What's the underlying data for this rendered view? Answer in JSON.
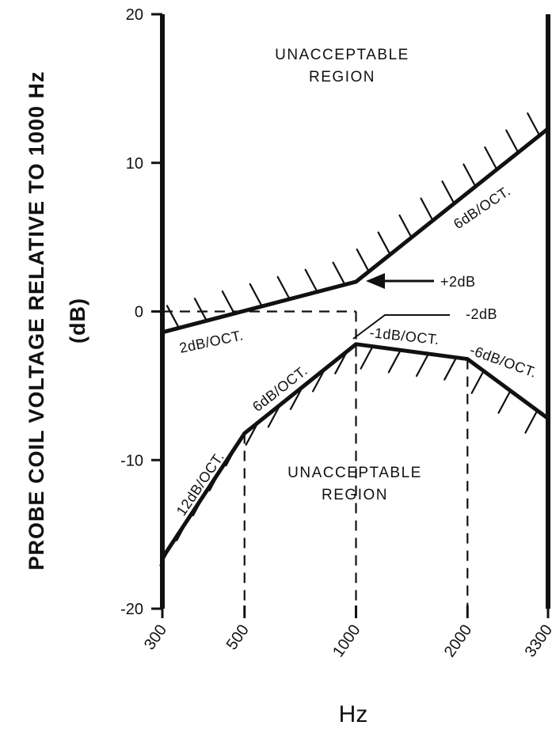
{
  "chart_data": {
    "type": "line",
    "xlabel": "Hz",
    "ylabel": "PROBE COIL VOLTAGE RELATIVE TO 1000 Hz",
    "ylabel_unit": "(dB)",
    "x_scale": "log",
    "xlim": [
      300,
      3300
    ],
    "ylim": [
      -20,
      20
    ],
    "x_ticks": [
      300,
      500,
      1000,
      2000,
      3300
    ],
    "x_tick_labels": [
      "300",
      "500",
      "1000",
      "2000",
      "3300"
    ],
    "y_ticks": [
      -20,
      -10,
      0,
      10,
      20
    ],
    "y_tick_labels": [
      "-20",
      "-10",
      "0",
      "10",
      "20"
    ],
    "grid": false,
    "series": [
      {
        "id": "upper",
        "x": [
          300,
          1000,
          3300
        ],
        "y": [
          -1.4,
          2,
          12.3
        ]
      },
      {
        "id": "lower",
        "x": [
          300,
          500,
          1000,
          2000,
          3300
        ],
        "y": [
          -16.6,
          -8.2,
          -2.2,
          -3.2,
          -7.2
        ]
      }
    ],
    "reference_lines": [
      {
        "points": [
          [
            300,
            0
          ],
          [
            1000,
            0
          ]
        ]
      },
      {
        "points": [
          [
            1000,
            0
          ],
          [
            1000,
            -20
          ]
        ]
      },
      {
        "points": [
          [
            500,
            -8.2
          ],
          [
            500,
            -20
          ]
        ]
      },
      {
        "points": [
          [
            2000,
            -3.2
          ],
          [
            2000,
            -20
          ]
        ]
      }
    ],
    "annotations": {
      "upper_region": [
        "UNACCEPTABLE",
        "REGION"
      ],
      "lower_region": [
        "UNACCEPTABLE",
        "REGION"
      ],
      "upper_seg1_slope": "2dB/OCT.",
      "upper_seg2_slope": "6dB/OCT.",
      "plus2": "+2dB",
      "minus2": "-2dB",
      "lower_seg1_slope": "12dB/OCT.",
      "lower_seg2_slope": "6dB/OCT.",
      "lower_seg3_slope": "-1dB/OCT.",
      "lower_seg4_slope": "-6dB/OCT."
    }
  }
}
